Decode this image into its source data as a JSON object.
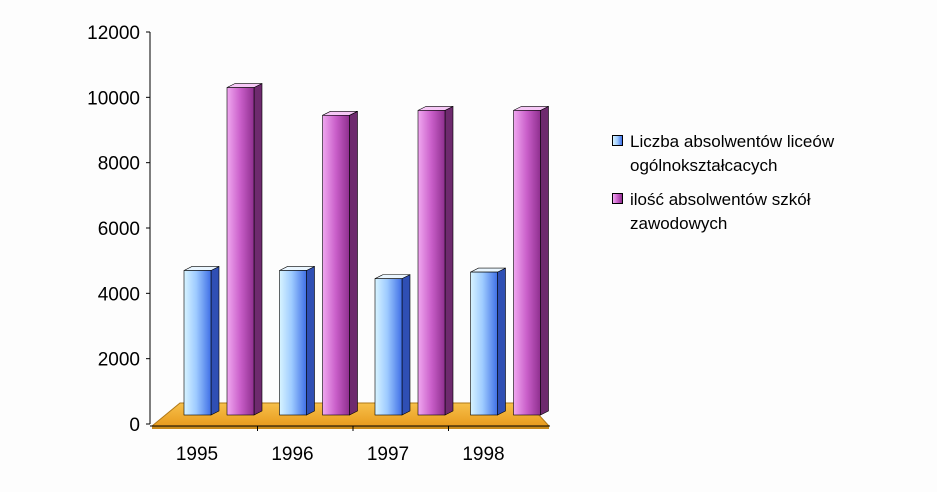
{
  "chart_data": {
    "type": "bar",
    "categories": [
      "1995",
      "1996",
      "1997",
      "1998"
    ],
    "series": [
      {
        "name": "Liczba absolwentów liceów ogólnokształcacych",
        "values": [
          4700,
          4700,
          4450,
          4650
        ],
        "color": "#7fa4ff"
      },
      {
        "name": "ilość absolwentów szkół zawodowych",
        "values": [
          10300,
          9450,
          9600,
          9600
        ],
        "color": "#cc66cc"
      }
    ],
    "ylim": [
      0,
      12000
    ],
    "yticks": [
      "0",
      "2000",
      "4000",
      "6000",
      "8000",
      "10000",
      "12000"
    ],
    "ytick_values": [
      0,
      2000,
      4000,
      6000,
      8000,
      10000,
      12000
    ],
    "floor_color": "#f4a928",
    "grid": false,
    "legend_position": "right",
    "title": "",
    "xlabel": "",
    "ylabel": ""
  }
}
